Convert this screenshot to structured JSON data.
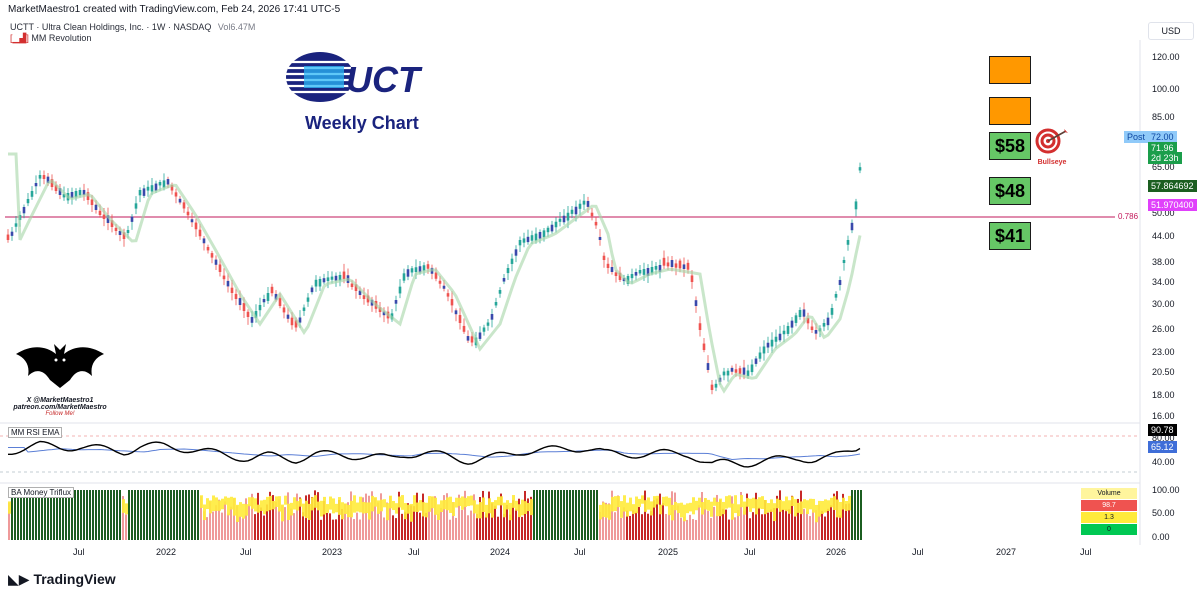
{
  "header": {
    "created_by": "MarketMaestro1 created with TradingView.com, Feb 24, 2026 17:41 UTC-5",
    "symbol_line": "UCTT · Ultra Clean Holdings, Inc. · 1W · NASDAQ",
    "volume": "Vol6.47M",
    "indicator": "MM Revolution"
  },
  "currency": "USD",
  "logo": {
    "text": "UCT",
    "subtitle": "Weekly Chart"
  },
  "targets": {
    "orange1": "",
    "orange2": "",
    "t58": "$58",
    "t48": "$48",
    "t41": "$41",
    "bullseye": "Bullseye"
  },
  "watermark": {
    "line1": "X @MarketMaestro1",
    "line2": "patreon.com/MarketMaestro",
    "line3": "Follow Me!"
  },
  "price_axis": [
    "120.00",
    "100.00",
    "85.00",
    "72.00",
    "65.00",
    "57.864692",
    "51.970400",
    "50.00",
    "44.00",
    "38.00",
    "34.00",
    "30.00",
    "26.00",
    "23.00",
    "20.50",
    "18.00",
    "16.00"
  ],
  "price_tags": {
    "post_label": "Post",
    "post_price": "72.00",
    "last_price": "71.96",
    "countdown": "2d 23h",
    "level1": "57.864692",
    "level2": "51.970400"
  },
  "fib": {
    "label": "0.786"
  },
  "rsi": {
    "title": "MM RSI EMA",
    "value1": "90.78",
    "value2": "65.12",
    "axis": [
      "80.00",
      "60.00",
      "40.00"
    ]
  },
  "triflux": {
    "title": "BA Money Triflux",
    "axis": [
      "100.00",
      "50.00",
      "0.00"
    ],
    "table_title": "Volume",
    "row1": "98.7",
    "row2": "1.3",
    "row3": "0"
  },
  "time_axis": [
    "Jul",
    "2022",
    "Jul",
    "2023",
    "Jul",
    "2024",
    "Jul",
    "2025",
    "Jul",
    "2026",
    "Jul",
    "2027",
    "Jul"
  ],
  "brand": "TradingView",
  "colors": {
    "bull": "#26a69a",
    "bear": "#ef5350",
    "fib": "#c2185b",
    "ema_blue": "#5b7fd6",
    "orange": "#ff9800",
    "green_box": "#66c766"
  }
}
